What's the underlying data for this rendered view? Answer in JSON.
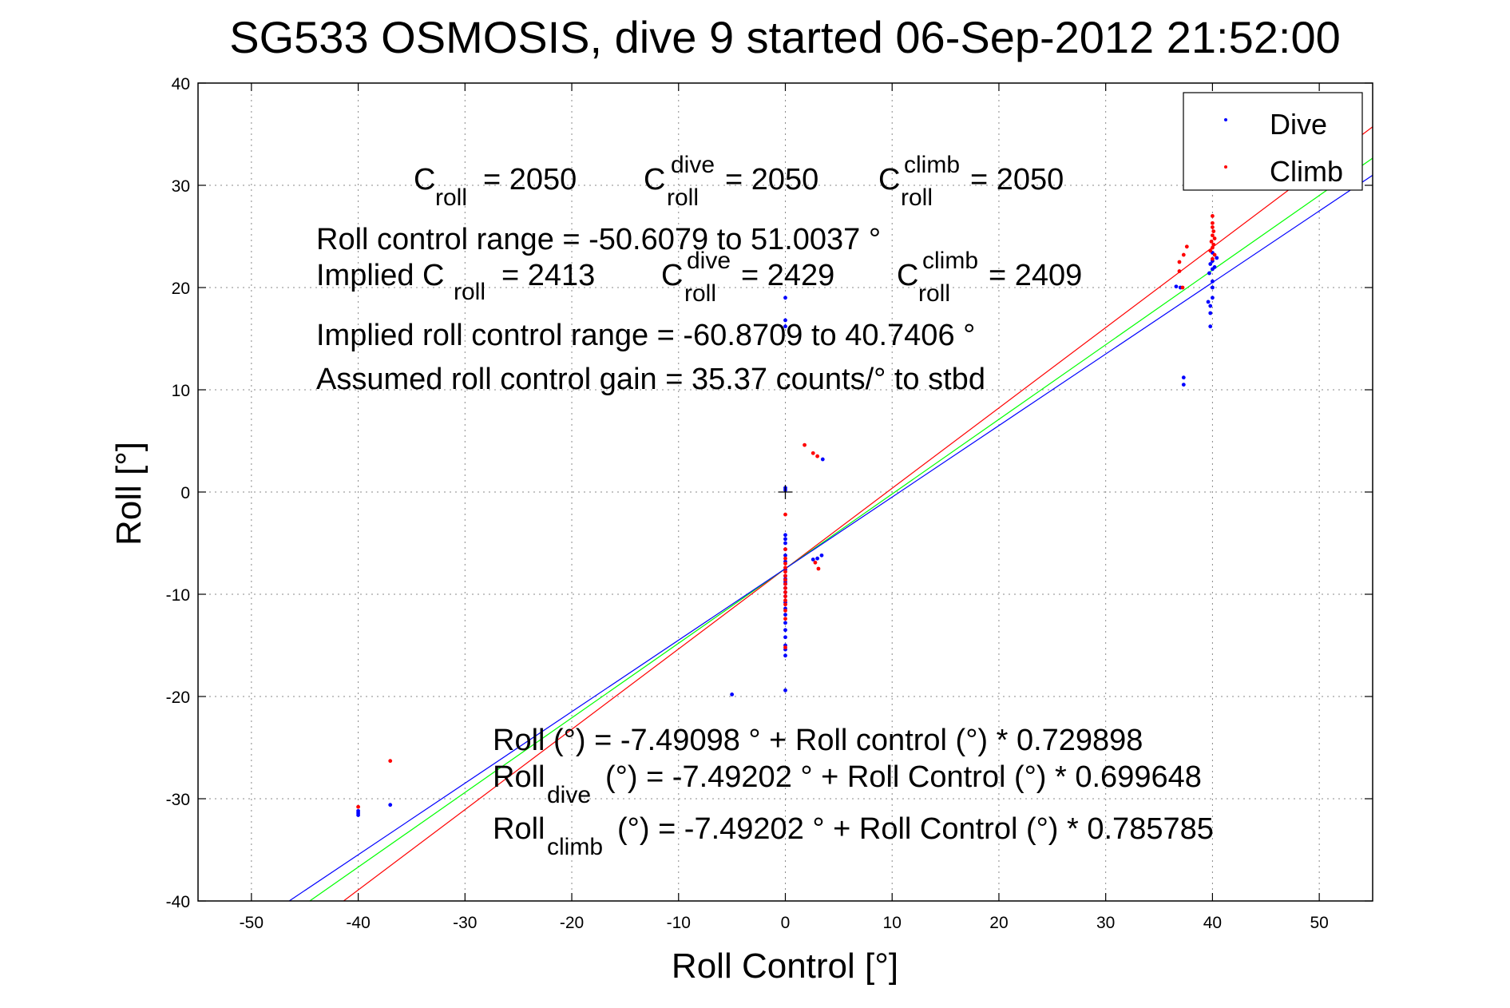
{
  "chart_data": {
    "type": "scatter",
    "title": "SG533 OSMOSIS, dive 9 started 06-Sep-2012 21:52:00",
    "xlabel": "Roll Control [°]",
    "ylabel": "Roll [°]",
    "xlim": [
      -55,
      55
    ],
    "ylim": [
      -40,
      40
    ],
    "xticks": [
      -50,
      -40,
      -30,
      -20,
      -10,
      0,
      10,
      20,
      30,
      40,
      50
    ],
    "yticks": [
      -40,
      -30,
      -20,
      -10,
      0,
      10,
      20,
      30,
      40
    ],
    "grid": true,
    "legend_position": "top-right",
    "series": [
      {
        "name": "Dive",
        "color": "#0000ff",
        "points": [
          [
            -40,
            -31.2
          ],
          [
            -40,
            -31.6
          ],
          [
            -40,
            -31.4
          ],
          [
            -37,
            -30.6
          ],
          [
            -5,
            -19.8
          ],
          [
            0,
            -19.4
          ],
          [
            0,
            -16.0
          ],
          [
            0,
            -15.4
          ],
          [
            0,
            -15.0
          ],
          [
            0,
            -14.2
          ],
          [
            0,
            -13.5
          ],
          [
            0,
            -12.8
          ],
          [
            0,
            -12.0
          ],
          [
            0,
            -11.4
          ],
          [
            0,
            -10.8
          ],
          [
            0,
            -10.2
          ],
          [
            0,
            -9.8
          ],
          [
            0,
            -9.4
          ],
          [
            0,
            -9.0
          ],
          [
            0,
            -8.8
          ],
          [
            0,
            -8.5
          ],
          [
            0,
            -8.2
          ],
          [
            0,
            -7.6
          ],
          [
            0,
            -6.8
          ],
          [
            0,
            -6.2
          ],
          [
            0,
            -5.6
          ],
          [
            0,
            -5.0
          ],
          [
            0,
            -4.6
          ],
          [
            0,
            -4.2
          ],
          [
            0,
            0.2
          ],
          [
            0,
            0.4
          ],
          [
            0,
            16.2
          ],
          [
            0,
            16.8
          ],
          [
            0,
            19.0
          ],
          [
            3.5,
            3.2
          ],
          [
            2.6,
            -6.6
          ],
          [
            3.0,
            -6.5
          ],
          [
            3.4,
            -6.2
          ],
          [
            37,
            20.0
          ],
          [
            36.6,
            20.1
          ],
          [
            37.3,
            11.2
          ],
          [
            37.3,
            10.5
          ],
          [
            39.8,
            16.2
          ],
          [
            39.8,
            17.5
          ],
          [
            39.8,
            18.2
          ],
          [
            39.6,
            18.6
          ],
          [
            40,
            19.0
          ],
          [
            40,
            20.0
          ],
          [
            40,
            20.6
          ],
          [
            39.7,
            21.4
          ],
          [
            40,
            21.8
          ],
          [
            40.2,
            22.0
          ],
          [
            39.8,
            22.3
          ],
          [
            40,
            22.6
          ],
          [
            40.4,
            22.9
          ],
          [
            40,
            23.4
          ]
        ]
      },
      {
        "name": "Climb",
        "color": "#ff0000",
        "points": [
          [
            -40,
            -30.8
          ],
          [
            -37,
            -26.3
          ],
          [
            1.8,
            4.6
          ],
          [
            2.6,
            3.8
          ],
          [
            3.0,
            3.5
          ],
          [
            3.1,
            -7.5
          ],
          [
            2.8,
            -6.9
          ],
          [
            0,
            -2.2
          ],
          [
            0,
            -5.6
          ],
          [
            0,
            -6.5
          ],
          [
            0,
            -7.0
          ],
          [
            0,
            -7.4
          ],
          [
            0,
            -7.8
          ],
          [
            0,
            -8.2
          ],
          [
            0,
            -8.6
          ],
          [
            0,
            -9.0
          ],
          [
            0,
            -9.4
          ],
          [
            0,
            -9.8
          ],
          [
            0,
            -10.2
          ],
          [
            0,
            -10.6
          ],
          [
            0,
            -11.0
          ],
          [
            0,
            -11.6
          ],
          [
            0,
            -12.4
          ],
          [
            0,
            -15.2
          ],
          [
            37.3,
            23.2
          ],
          [
            37.6,
            24.0
          ],
          [
            36.9,
            22.5
          ],
          [
            36.9,
            21.6
          ],
          [
            37.2,
            20.0
          ],
          [
            40,
            27.0
          ],
          [
            40,
            26.3
          ],
          [
            40,
            25.9
          ],
          [
            40.1,
            25.5
          ],
          [
            40,
            25.1
          ],
          [
            40.2,
            24.8
          ],
          [
            39.9,
            24.5
          ],
          [
            40.1,
            24.2
          ],
          [
            40,
            23.9
          ],
          [
            39.8,
            23.6
          ],
          [
            40.2,
            23.2
          ],
          [
            40,
            22.8
          ]
        ]
      }
    ],
    "fit_lines": [
      {
        "color": "#ff0000",
        "intercept": -7.49202,
        "slope": 0.785785
      },
      {
        "color": "#00ff00",
        "intercept": -7.49098,
        "slope": 0.729898
      },
      {
        "color": "#0000ff",
        "intercept": -7.49202,
        "slope": 0.699648
      }
    ],
    "reference_marker": [
      0,
      0
    ],
    "annotations": {
      "croll_label": "C",
      "croll_sub": "roll",
      "croll_value": "= 2050",
      "cdive_sup": "dive",
      "cdive_sub": "roll",
      "cdive_value": "= 2050",
      "cclimb_sup": "climb",
      "cclimb_sub": "roll",
      "cclimb_value": "= 2050",
      "range_text": "Roll control range = -50.6079 to 51.0037 °",
      "implied_label": "Implied C",
      "implied_sub": "roll",
      "implied_value": "= 2413",
      "implied_dive_sup": "dive",
      "implied_dive_sub": "roll",
      "implied_dive_value": "= 2429",
      "implied_climb_sup": "climb",
      "implied_climb_sub": "roll",
      "implied_climb_value": "= 2409",
      "implied_range_text": "Implied roll control range = -60.8709 to 40.7406 °",
      "gain_text": "Assumed roll control gain = 35.37 counts/° to stbd",
      "fit_all_text": "Roll (°) = -7.49098 ° + Roll control (°) * 0.729898",
      "fit_dive_a": "Roll",
      "fit_dive_sub": "dive",
      "fit_dive_b": "(°) = -7.49202 ° + Roll Control (°) * 0.699648",
      "fit_climb_a": "Roll",
      "fit_climb_sub": "climb",
      "fit_climb_b": "(°) = -7.49202 ° + Roll Control (°) * 0.785785"
    }
  }
}
